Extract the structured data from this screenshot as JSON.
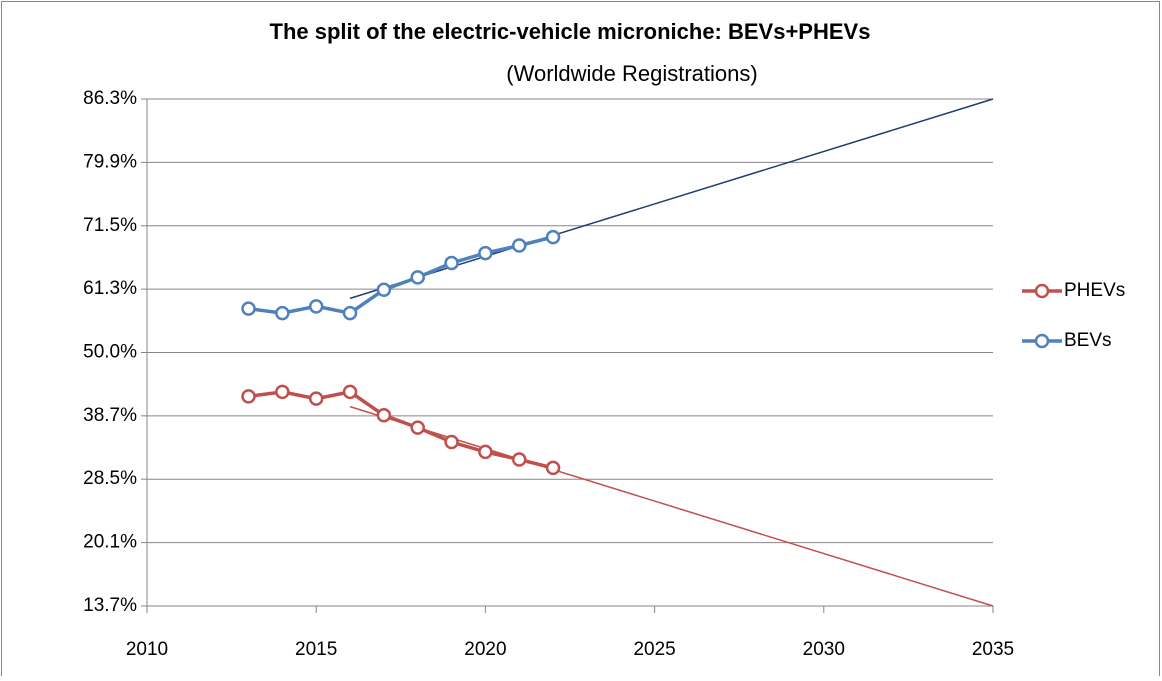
{
  "chart_data": {
    "type": "line",
    "title": "The split of the electric-vehicle microniche: BEVs+PHEVs",
    "subtitle": "(Worldwide Registrations)",
    "x": [
      2013,
      2014,
      2015,
      2016,
      2017,
      2018,
      2019,
      2020,
      2021,
      2022
    ],
    "series": [
      {
        "name": "PHEVs",
        "color": "#c0504d",
        "values": [
          42.1,
          42.9,
          41.7,
          42.9,
          38.8,
          36.7,
          34.3,
          32.7,
          31.5,
          30.2
        ]
      },
      {
        "name": "BEVs",
        "color": "#4f81bd",
        "values": [
          57.9,
          57.1,
          58.3,
          57.1,
          61.2,
          63.3,
          65.7,
          67.3,
          68.5,
          69.8
        ]
      }
    ],
    "trendlines": [
      {
        "color": "#c0504d",
        "x": [
          2016,
          2035
        ],
        "values": [
          40.3,
          13.7
        ]
      },
      {
        "color": "#1f3f6e",
        "x": [
          2016,
          2035
        ],
        "values": [
          59.7,
          86.3
        ]
      }
    ],
    "xlim": [
      2010,
      2035
    ],
    "xticks": [
      2010,
      2015,
      2020,
      2025,
      2030,
      2035
    ],
    "ylim": [
      13.7,
      86.3
    ],
    "yscale": "logit",
    "yticks": [
      {
        "value": 13.7,
        "label": "13.7%"
      },
      {
        "value": 20.1,
        "label": "20.1%"
      },
      {
        "value": 28.5,
        "label": "28.5%"
      },
      {
        "value": 38.7,
        "label": "38.7%"
      },
      {
        "value": 50.0,
        "label": "50.0%"
      },
      {
        "value": 61.3,
        "label": "61.3%"
      },
      {
        "value": 71.5,
        "label": "71.5%"
      },
      {
        "value": 79.9,
        "label": "79.9%"
      },
      {
        "value": 86.3,
        "label": "86.3%"
      }
    ],
    "grid": true,
    "legend": "right"
  }
}
